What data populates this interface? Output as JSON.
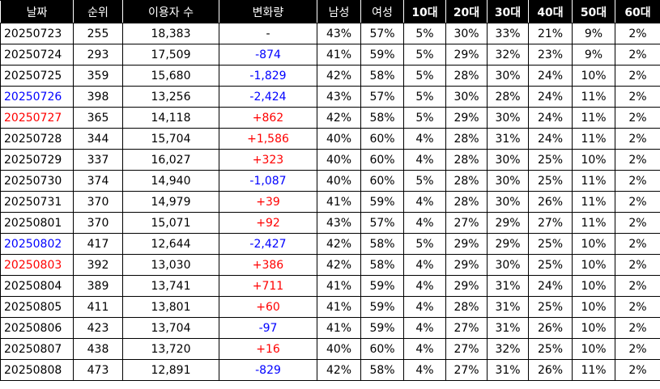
{
  "colors": {
    "header_bg": "#000000",
    "header_text": "#ffffff",
    "blue": "#0000ff",
    "red": "#ff0000",
    "text": "#000000"
  },
  "columns": [
    "날짜",
    "순위",
    "이용자 수",
    "변화량",
    "남성",
    "여성",
    "10대",
    "20대",
    "30대",
    "40대",
    "50대",
    "60대"
  ],
  "rows": [
    {
      "date": "20250723",
      "date_color": "",
      "rank": "255",
      "users": "18,383",
      "change": "-",
      "change_color": "",
      "male": "43%",
      "female": "57%",
      "a10": "5%",
      "a20": "30%",
      "a30": "33%",
      "a40": "21%",
      "a50": "9%",
      "a60": "2%"
    },
    {
      "date": "20250724",
      "date_color": "",
      "rank": "293",
      "users": "17,509",
      "change": "-874",
      "change_color": "#0000ff",
      "male": "41%",
      "female": "59%",
      "a10": "5%",
      "a20": "29%",
      "a30": "32%",
      "a40": "23%",
      "a50": "9%",
      "a60": "2%"
    },
    {
      "date": "20250725",
      "date_color": "",
      "rank": "359",
      "users": "15,680",
      "change": "-1,829",
      "change_color": "#0000ff",
      "male": "42%",
      "female": "58%",
      "a10": "5%",
      "a20": "28%",
      "a30": "30%",
      "a40": "24%",
      "a50": "10%",
      "a60": "2%"
    },
    {
      "date": "20250726",
      "date_color": "#0000ff",
      "rank": "398",
      "users": "13,256",
      "change": "-2,424",
      "change_color": "#0000ff",
      "male": "43%",
      "female": "57%",
      "a10": "5%",
      "a20": "30%",
      "a30": "28%",
      "a40": "24%",
      "a50": "11%",
      "a60": "2%"
    },
    {
      "date": "20250727",
      "date_color": "#ff0000",
      "rank": "365",
      "users": "14,118",
      "change": "+862",
      "change_color": "#ff0000",
      "male": "42%",
      "female": "58%",
      "a10": "5%",
      "a20": "29%",
      "a30": "30%",
      "a40": "24%",
      "a50": "11%",
      "a60": "2%"
    },
    {
      "date": "20250728",
      "date_color": "",
      "rank": "344",
      "users": "15,704",
      "change": "+1,586",
      "change_color": "#ff0000",
      "male": "40%",
      "female": "60%",
      "a10": "4%",
      "a20": "28%",
      "a30": "31%",
      "a40": "24%",
      "a50": "11%",
      "a60": "2%"
    },
    {
      "date": "20250729",
      "date_color": "",
      "rank": "337",
      "users": "16,027",
      "change": "+323",
      "change_color": "#ff0000",
      "male": "40%",
      "female": "60%",
      "a10": "4%",
      "a20": "28%",
      "a30": "30%",
      "a40": "25%",
      "a50": "10%",
      "a60": "2%"
    },
    {
      "date": "20250730",
      "date_color": "",
      "rank": "374",
      "users": "14,940",
      "change": "-1,087",
      "change_color": "#0000ff",
      "male": "40%",
      "female": "60%",
      "a10": "5%",
      "a20": "28%",
      "a30": "30%",
      "a40": "25%",
      "a50": "11%",
      "a60": "2%"
    },
    {
      "date": "20250731",
      "date_color": "",
      "rank": "370",
      "users": "14,979",
      "change": "+39",
      "change_color": "#ff0000",
      "male": "41%",
      "female": "59%",
      "a10": "4%",
      "a20": "28%",
      "a30": "30%",
      "a40": "26%",
      "a50": "11%",
      "a60": "2%"
    },
    {
      "date": "20250801",
      "date_color": "",
      "rank": "370",
      "users": "15,071",
      "change": "+92",
      "change_color": "#ff0000",
      "male": "43%",
      "female": "57%",
      "a10": "4%",
      "a20": "27%",
      "a30": "29%",
      "a40": "27%",
      "a50": "11%",
      "a60": "2%"
    },
    {
      "date": "20250802",
      "date_color": "#0000ff",
      "rank": "417",
      "users": "12,644",
      "change": "-2,427",
      "change_color": "#0000ff",
      "male": "42%",
      "female": "58%",
      "a10": "5%",
      "a20": "29%",
      "a30": "29%",
      "a40": "25%",
      "a50": "10%",
      "a60": "2%"
    },
    {
      "date": "20250803",
      "date_color": "#ff0000",
      "rank": "392",
      "users": "13,030",
      "change": "+386",
      "change_color": "#ff0000",
      "male": "42%",
      "female": "58%",
      "a10": "4%",
      "a20": "29%",
      "a30": "30%",
      "a40": "25%",
      "a50": "10%",
      "a60": "2%"
    },
    {
      "date": "20250804",
      "date_color": "",
      "rank": "389",
      "users": "13,741",
      "change": "+711",
      "change_color": "#ff0000",
      "male": "41%",
      "female": "59%",
      "a10": "4%",
      "a20": "29%",
      "a30": "31%",
      "a40": "24%",
      "a50": "10%",
      "a60": "2%"
    },
    {
      "date": "20250805",
      "date_color": "",
      "rank": "411",
      "users": "13,801",
      "change": "+60",
      "change_color": "#ff0000",
      "male": "41%",
      "female": "59%",
      "a10": "4%",
      "a20": "28%",
      "a30": "31%",
      "a40": "25%",
      "a50": "10%",
      "a60": "2%"
    },
    {
      "date": "20250806",
      "date_color": "",
      "rank": "423",
      "users": "13,704",
      "change": "-97",
      "change_color": "#0000ff",
      "male": "41%",
      "female": "59%",
      "a10": "4%",
      "a20": "27%",
      "a30": "31%",
      "a40": "26%",
      "a50": "10%",
      "a60": "2%"
    },
    {
      "date": "20250807",
      "date_color": "",
      "rank": "438",
      "users": "13,720",
      "change": "+16",
      "change_color": "#ff0000",
      "male": "40%",
      "female": "60%",
      "a10": "4%",
      "a20": "27%",
      "a30": "32%",
      "a40": "25%",
      "a50": "10%",
      "a60": "2%"
    },
    {
      "date": "20250808",
      "date_color": "",
      "rank": "473",
      "users": "12,891",
      "change": "-829",
      "change_color": "#0000ff",
      "male": "42%",
      "female": "58%",
      "a10": "4%",
      "a20": "27%",
      "a30": "31%",
      "a40": "26%",
      "a50": "11%",
      "a60": "2%"
    }
  ]
}
